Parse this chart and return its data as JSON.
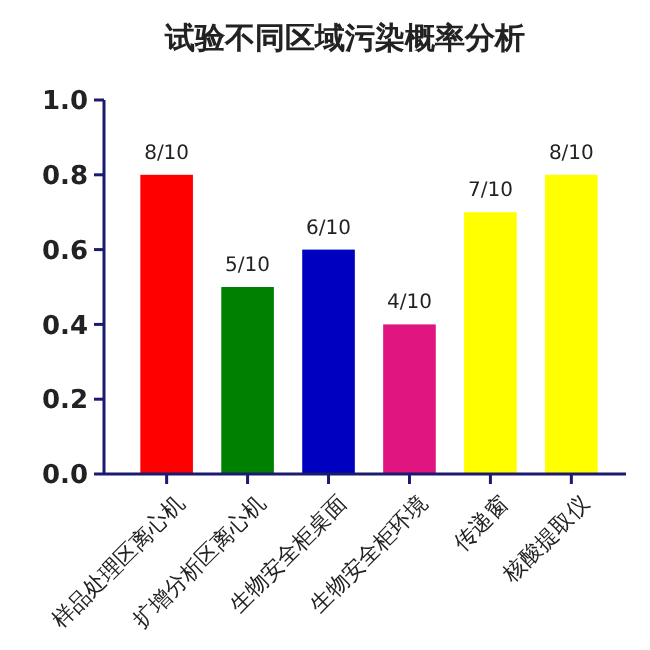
{
  "chart_data": {
    "type": "bar",
    "title": "试验不同区域污染概率分析",
    "categories": [
      "样品处理区离心机",
      "扩增分析区离心机",
      "生物安全柜桌面",
      "生物安全柜环境",
      "传递窗",
      "核酸提取仪"
    ],
    "values": [
      0.8,
      0.5,
      0.6,
      0.4,
      0.7,
      0.8
    ],
    "colors": [
      "#ff0000",
      "#008000",
      "#0000c0",
      "#e0157f",
      "#ffff00",
      "#ffff00"
    ],
    "value_labels": [
      "8/10",
      "5/10",
      "6/10",
      "4/10",
      "7/10",
      "8/10"
    ],
    "ylim": [
      0,
      1
    ],
    "yticks": [
      {
        "value": 0,
        "label": "0.0"
      },
      {
        "value": 0.2,
        "label": "0.2"
      },
      {
        "value": 0.4,
        "label": "0.4"
      },
      {
        "value": 0.6,
        "label": "0.6"
      },
      {
        "value": 0.8,
        "label": "0.8"
      },
      {
        "value": 1,
        "label": "1.0"
      }
    ],
    "grid": false
  }
}
